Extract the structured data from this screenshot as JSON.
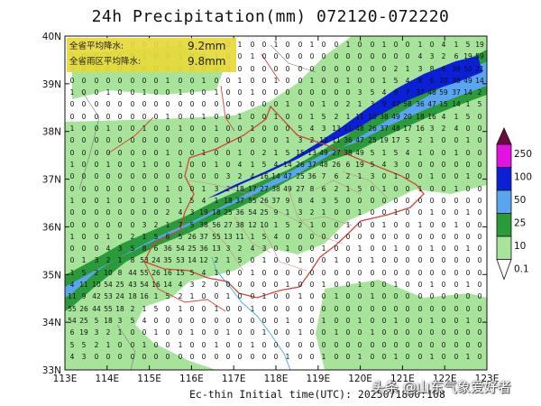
{
  "title": "24h Precipitation(mm) 072120-072220",
  "footer": "Ec-thin   Initial time(UTC): 2025071800:108",
  "watermark": "头条 @山东气象爱好者",
  "stats": [
    {
      "label": "全省平均降水:",
      "value": "9.2mm"
    },
    {
      "label": "全省雨区平均降水:",
      "value": "9.8mm"
    }
  ],
  "lat_labels": [
    "40N",
    "39N",
    "38N",
    "37N",
    "36N",
    "35N",
    "34N",
    "33N"
  ],
  "lon_labels": [
    "113E",
    "114E",
    "115E",
    "116E",
    "117E",
    "118E",
    "119E",
    "120E",
    "121E",
    "122E",
    "123E"
  ],
  "legend": {
    "labels": [
      "250",
      "100",
      "50",
      "25",
      "10",
      "0.1"
    ],
    "colors": [
      "#6e0a3c",
      "#e312e3",
      "#0a1fd6",
      "#5aa5f0",
      "#2b9a3b",
      "#a7e39a",
      "#ffffff"
    ]
  },
  "colors": {
    "light_green": "#a7e39a",
    "dark_green": "#2b9a3b",
    "light_blue": "#5aa5f0",
    "dark_blue": "#0a1fd6",
    "province_border": "#d0463a",
    "county_border": "#c98a7e",
    "river": "#49b6d8",
    "stats_box": "#e6d93a"
  }
}
